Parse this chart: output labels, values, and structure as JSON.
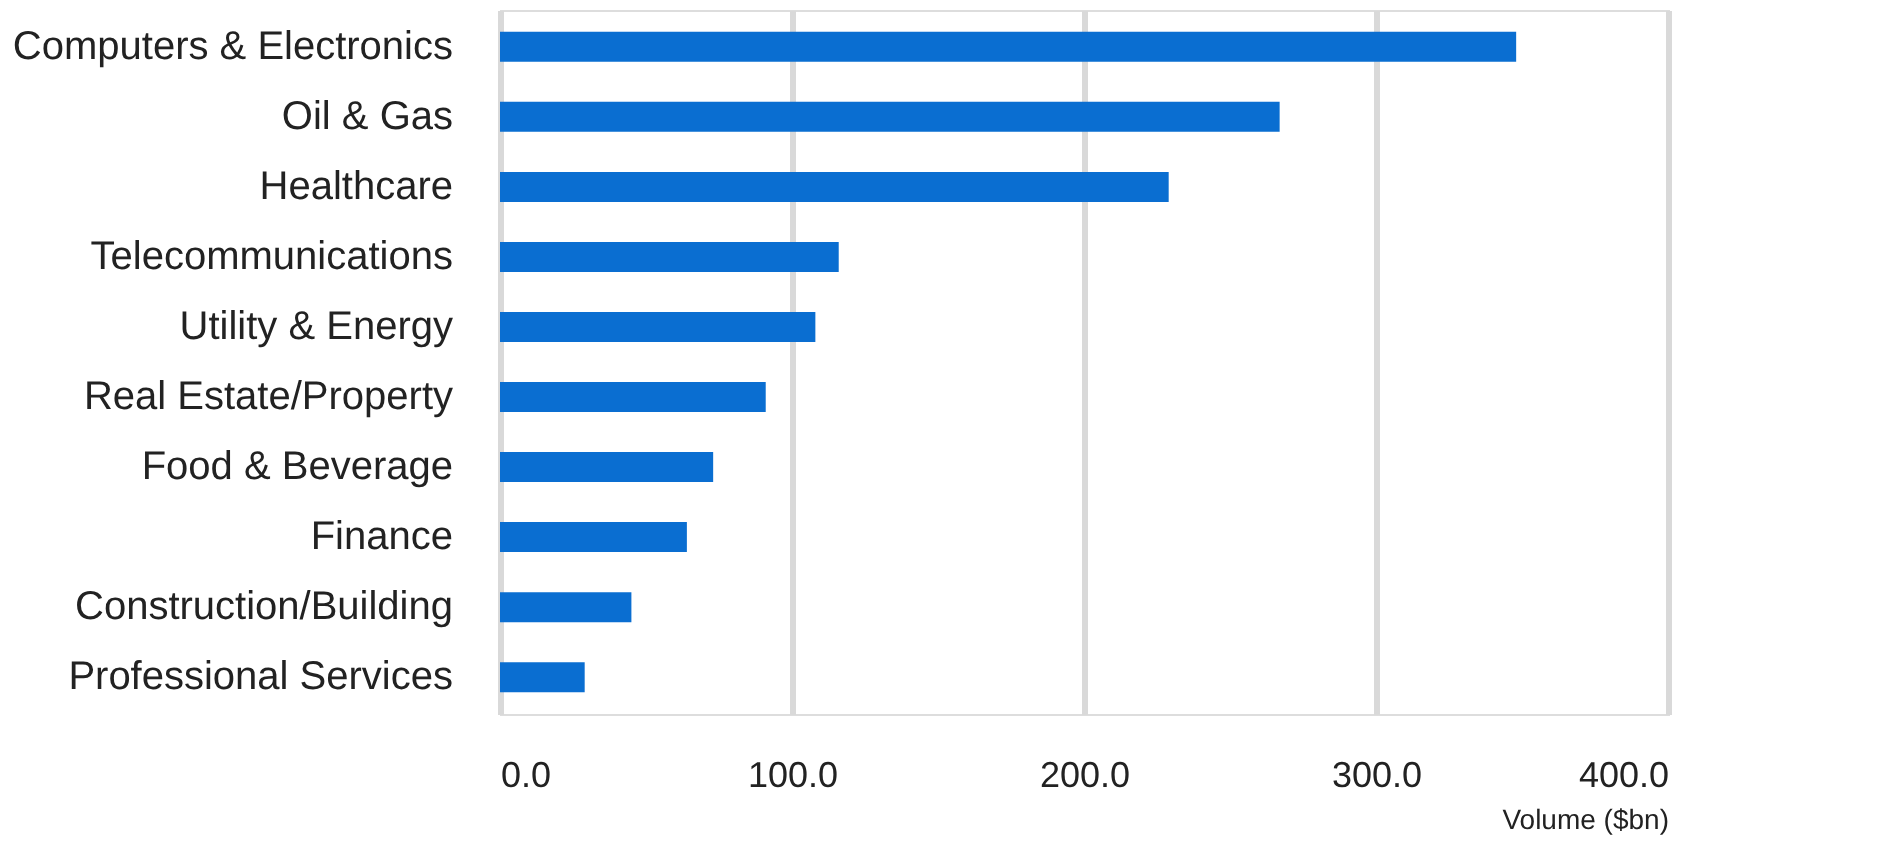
{
  "chart_data": {
    "type": "bar",
    "orientation": "horizontal",
    "categories": [
      "Computers & Electronics",
      "Oil & Gas",
      "Healthcare",
      "Telecommunications",
      "Utility & Energy",
      "Real Estate/Property",
      "Food & Beverage",
      "Finance",
      "Construction/Building",
      "Professional Services"
    ],
    "values": [
      348,
      267,
      229,
      116,
      108,
      91,
      73,
      64,
      45,
      29
    ],
    "color": "#0a6ed1",
    "xlim": [
      0,
      400
    ],
    "xticks": [
      {
        "value": 0,
        "label": "0.0"
      },
      {
        "value": 100,
        "label": "100.0"
      },
      {
        "value": 200,
        "label": "200.0"
      },
      {
        "value": 300,
        "label": "300.0"
      },
      {
        "value": 400,
        "label": "400.0"
      }
    ],
    "xlabel": "Volume ($bn)",
    "grid": "x"
  }
}
